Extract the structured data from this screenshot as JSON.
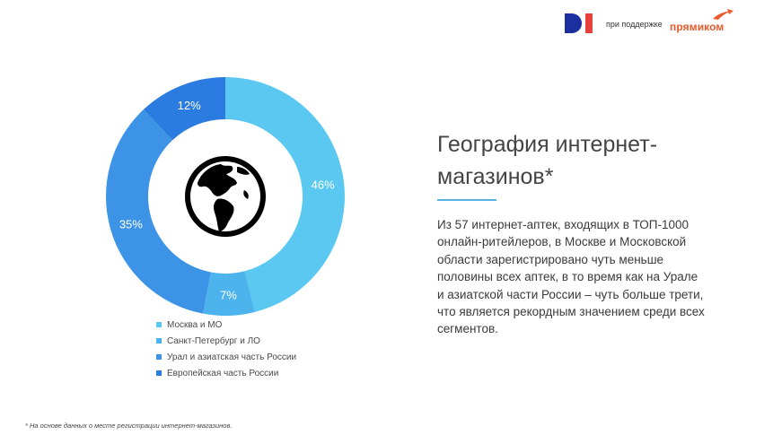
{
  "header": {
    "di_logo": "DI",
    "support_text": "при поддержке",
    "partner_logo": "прямиком"
  },
  "colors": {
    "moscow": "#5bc8f2",
    "spb": "#4db3ec",
    "ural": "#3d94e6",
    "europe": "#2b7be0",
    "accent_orange": "#ea5a2c",
    "di_blue": "#1c2f9e",
    "di_red": "#e8413c"
  },
  "chart_data": {
    "type": "pie",
    "style": "donut",
    "center_icon": "globe-icon",
    "categories": [
      "Москва и МО",
      "Санкт-Петербург и ЛО",
      "Урал и азиатская часть России",
      "Европейская часть России"
    ],
    "values": [
      46,
      7,
      35,
      12
    ],
    "labels": [
      "46%",
      "7%",
      "35%",
      "12%"
    ],
    "legend_position": "bottom"
  },
  "title": "География интернет-магазинов*",
  "description": "Из 57 интернет-аптек, входящих в ТОП-1000 онлайн-ритейлеров, в Москве и Московской области зарегистрировано чуть меньше половины всех аптек, в то время как на Урале и азиатской части России – чуть больше трети, что является рекордным значением среди всех сегментов.",
  "footnote": "* На основе данных о месте регистрации интернет-магазинов."
}
